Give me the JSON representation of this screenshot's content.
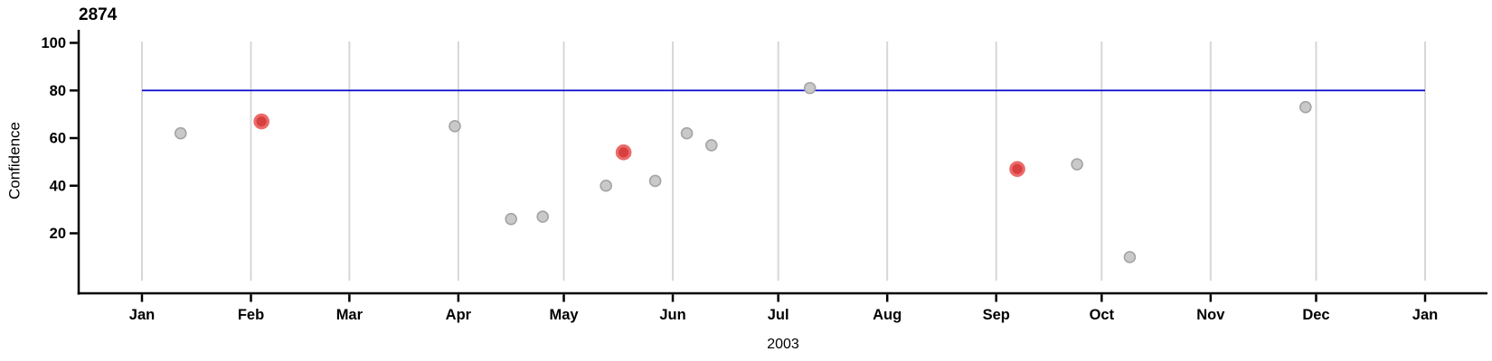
{
  "chart_data": {
    "type": "scatter",
    "title": "2874",
    "ylabel": "Confidence",
    "xlabel": "2003",
    "x_axis": {
      "unit": "months",
      "tick_labels": [
        "Jan",
        "Feb",
        "Mar",
        "Apr",
        "May",
        "Jun",
        "Jul",
        "Aug",
        "Sep",
        "Oct",
        "Nov",
        "Dec",
        "Jan"
      ],
      "range": [
        "2003-01-01",
        "2004-01-01"
      ]
    },
    "y_axis": {
      "ticks": [
        20,
        40,
        60,
        80,
        100
      ],
      "range": [
        0,
        100
      ]
    },
    "threshold_line": {
      "value": 80,
      "color": "#0b0bce"
    },
    "grid": "vertical-month-lines",
    "legend": "none",
    "points": [
      {
        "date": "2003-01-12",
        "confidence": 62,
        "highlighted": false
      },
      {
        "date": "2003-02-04",
        "confidence": 67,
        "highlighted": true
      },
      {
        "date": "2003-03-31",
        "confidence": 65,
        "highlighted": false
      },
      {
        "date": "2003-04-16",
        "confidence": 26,
        "highlighted": false
      },
      {
        "date": "2003-04-25",
        "confidence": 27,
        "highlighted": false
      },
      {
        "date": "2003-05-13",
        "confidence": 40,
        "highlighted": false
      },
      {
        "date": "2003-05-18",
        "confidence": 54,
        "highlighted": true
      },
      {
        "date": "2003-05-27",
        "confidence": 42,
        "highlighted": false
      },
      {
        "date": "2003-06-05",
        "confidence": 62,
        "highlighted": false
      },
      {
        "date": "2003-06-12",
        "confidence": 57,
        "highlighted": false
      },
      {
        "date": "2003-07-10",
        "confidence": 81,
        "highlighted": false
      },
      {
        "date": "2003-09-07",
        "confidence": 47,
        "highlighted": true
      },
      {
        "date": "2003-09-24",
        "confidence": 49,
        "highlighted": false
      },
      {
        "date": "2003-10-09",
        "confidence": 10,
        "highlighted": false
      },
      {
        "date": "2003-11-28",
        "confidence": 73,
        "highlighted": false
      }
    ],
    "colors": {
      "point_fill": "#c9c9c9",
      "point_stroke": "#a4a4a4",
      "highlight_fill": "#d84040",
      "highlight_stroke": "#ec6a6a",
      "gridline": "#d7d7d7",
      "axis": "#000000",
      "threshold": "#0b0bce"
    }
  }
}
